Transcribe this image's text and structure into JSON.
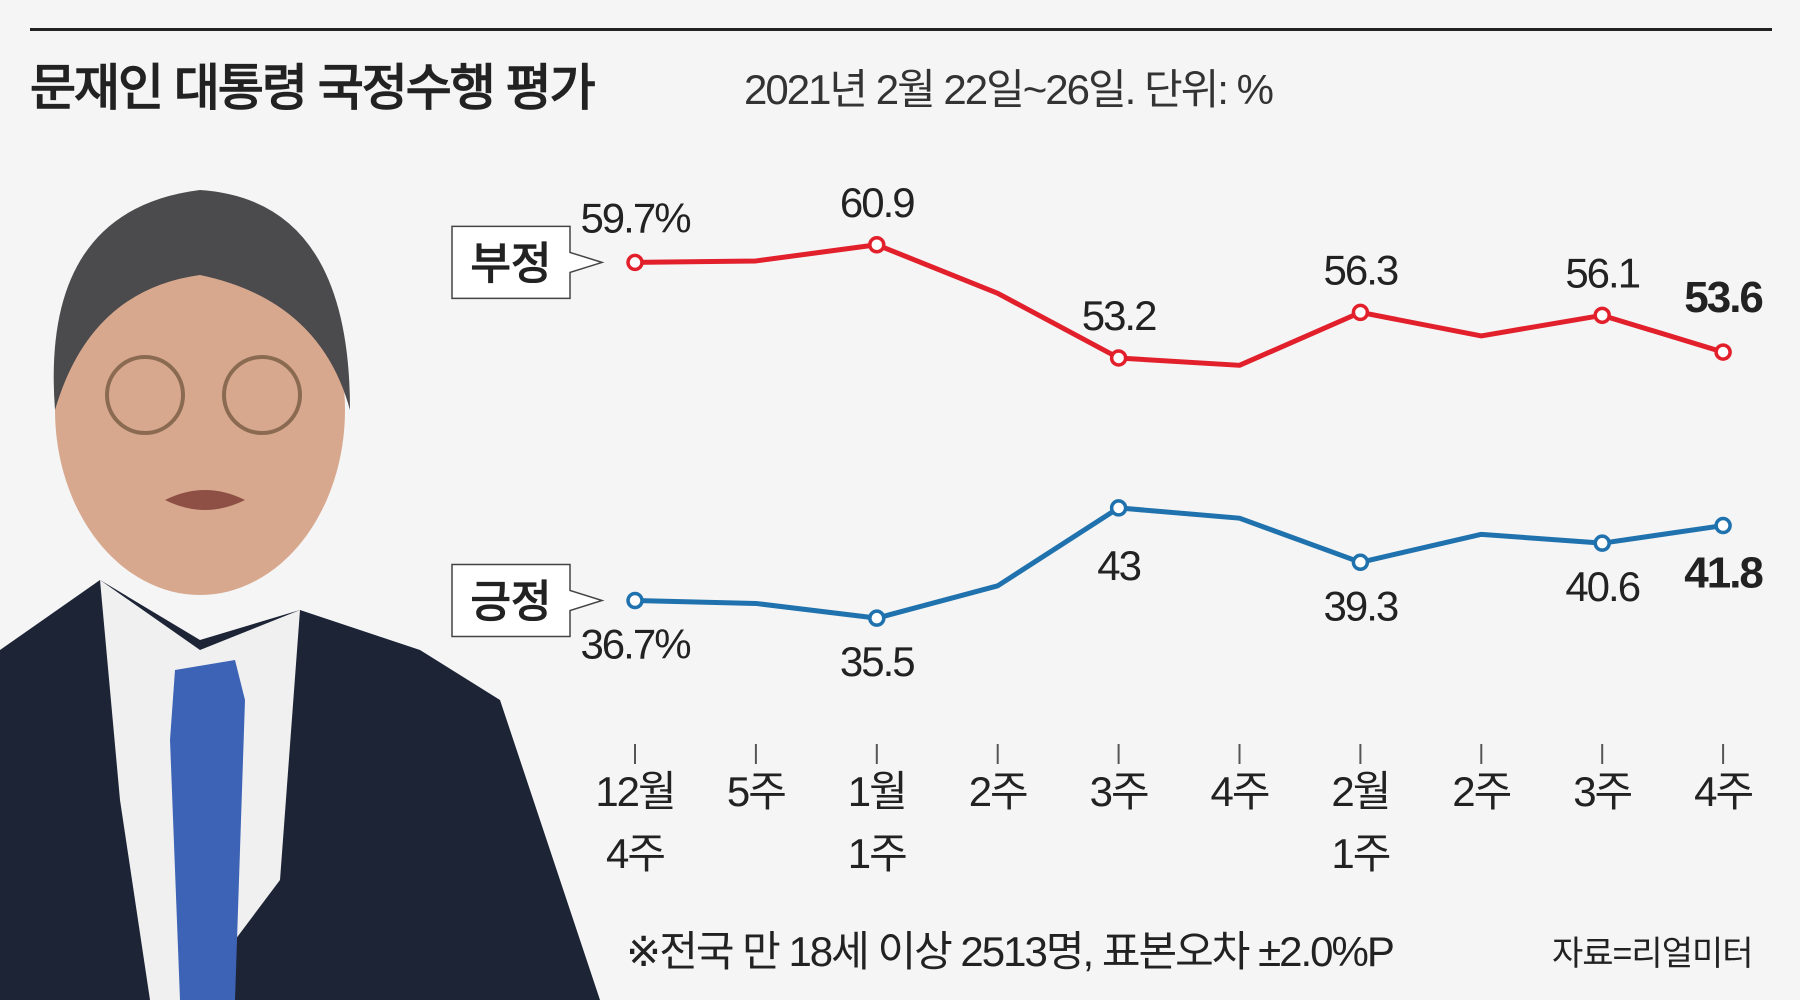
{
  "title": "문재인 대통령 국정수행 평가",
  "subtitle": "2021년 2월 22일~26일. 단위: %",
  "footnote": "※전국 만 18세 이상 2513명, 표본오차 ±2.0%P",
  "source": "자료=리얼미터",
  "chart_data": {
    "type": "line",
    "title": "문재인 대통령 국정수행 평가",
    "categories": [
      [
        "12월",
        "4주"
      ],
      [
        "5주"
      ],
      [
        "1월",
        "1주"
      ],
      [
        "2주"
      ],
      [
        "3주"
      ],
      [
        "4주"
      ],
      [
        "2월",
        "1주"
      ],
      [
        "2주"
      ],
      [
        "3주"
      ],
      [
        "4주"
      ]
    ],
    "ylim": [
      0,
      70
    ],
    "grid": false,
    "series": [
      {
        "name": "부정",
        "color": "#e2202c",
        "values": [
          59.7,
          59.8,
          60.9,
          57.6,
          53.2,
          52.7,
          56.3,
          54.7,
          56.1,
          53.6
        ],
        "marked": [
          0,
          2,
          4,
          6,
          8,
          9
        ],
        "labels": [
          "59.7%",
          "",
          "60.9",
          "",
          "53.2",
          "",
          "56.3",
          "",
          "56.1",
          "53.6"
        ],
        "label_pos": "above"
      },
      {
        "name": "긍정",
        "color": "#1f72ad",
        "values": [
          36.7,
          36.5,
          35.5,
          37.7,
          43.0,
          42.3,
          39.3,
          41.2,
          40.6,
          41.8
        ],
        "marked": [
          0,
          2,
          4,
          6,
          8,
          9
        ],
        "labels": [
          "36.7%",
          "",
          "35.5",
          "",
          "43",
          "",
          "39.3",
          "",
          "40.6",
          "41.8"
        ],
        "label_pos": "below"
      }
    ]
  }
}
